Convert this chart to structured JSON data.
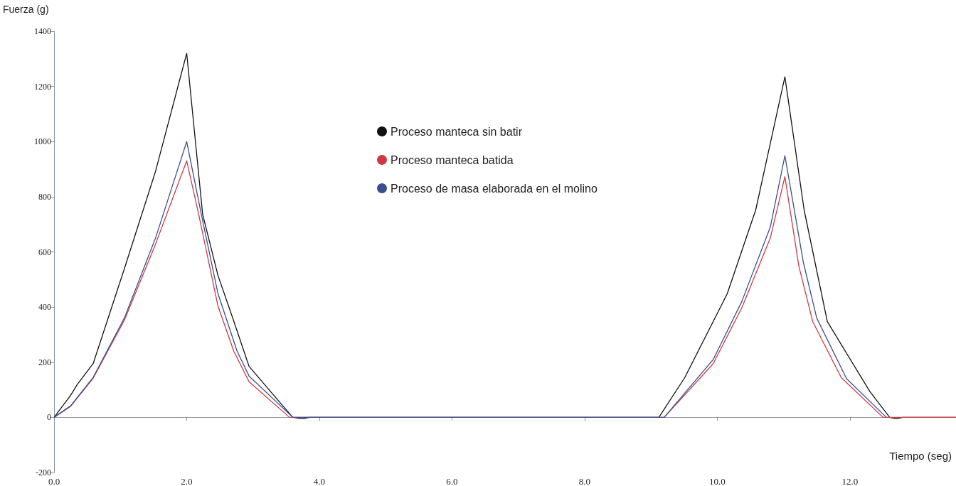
{
  "chart_data": {
    "type": "line",
    "xlabel": "Tiempo (seg)",
    "ylabel": "Fuerza (g)",
    "xlim": [
      0,
      13.6
    ],
    "ylim": [
      -200,
      1400
    ],
    "xticks": [
      {
        "value": 0,
        "label": "0.0"
      },
      {
        "value": 2,
        "label": "2.0"
      },
      {
        "value": 4,
        "label": "4.0"
      },
      {
        "value": 6,
        "label": "6.0"
      },
      {
        "value": 8,
        "label": "8.0"
      },
      {
        "value": 10,
        "label": "10.0"
      },
      {
        "value": 12,
        "label": "12.0"
      }
    ],
    "yticks": [
      -200,
      0,
      200,
      400,
      600,
      800,
      1000,
      1200,
      1400
    ],
    "legend": "top",
    "marker": "none",
    "line_style": "solid",
    "series": [
      {
        "name": "Proceso manteca sin batir",
        "color": "#111111",
        "x": [
          0,
          0.25,
          0.35,
          0.59,
          1.06,
          1.53,
          2.0,
          2.24,
          2.47,
          2.71,
          2.94,
          3.41,
          3.6,
          3.75,
          3.85,
          9.0,
          9.12,
          9.51,
          10.15,
          10.58,
          11.02,
          11.31,
          11.66,
          12.3,
          12.6,
          12.7,
          12.8,
          13.6
        ],
        "values": [
          0,
          80,
          119,
          195,
          539,
          892,
          1320,
          737,
          516,
          349,
          185,
          53,
          0,
          -5,
          0,
          0,
          0,
          144,
          448,
          752,
          1235,
          752,
          347,
          94,
          0,
          -5,
          0,
          0
        ]
      },
      {
        "name": "Proceso manteca batida",
        "color": "#cc3b45",
        "x": [
          0,
          0.25,
          0.59,
          1.06,
          1.53,
          2.0,
          2.18,
          2.47,
          2.71,
          2.94,
          3.55,
          9.2,
          9.94,
          10.37,
          10.8,
          11.02,
          11.23,
          11.44,
          11.87,
          12.5,
          13.6
        ],
        "values": [
          0,
          40,
          142,
          352,
          628,
          930,
          737,
          405,
          240,
          129,
          0,
          0,
          195,
          397,
          650,
          873,
          549,
          347,
          144,
          0,
          0
        ]
      },
      {
        "name": "Proceso de masa elaborada en el molino",
        "color": "#3a4f8f",
        "x": [
          0,
          0.25,
          0.59,
          1.06,
          1.53,
          2.0,
          2.22,
          2.47,
          2.76,
          2.94,
          3.6,
          9.2,
          9.94,
          10.37,
          10.8,
          11.02,
          11.3,
          11.5,
          11.95,
          12.55
        ],
        "values": [
          0,
          42,
          145,
          360,
          650,
          1000,
          737,
          450,
          240,
          150,
          0,
          0,
          210,
          420,
          690,
          949,
          560,
          360,
          140,
          0
        ]
      }
    ]
  }
}
